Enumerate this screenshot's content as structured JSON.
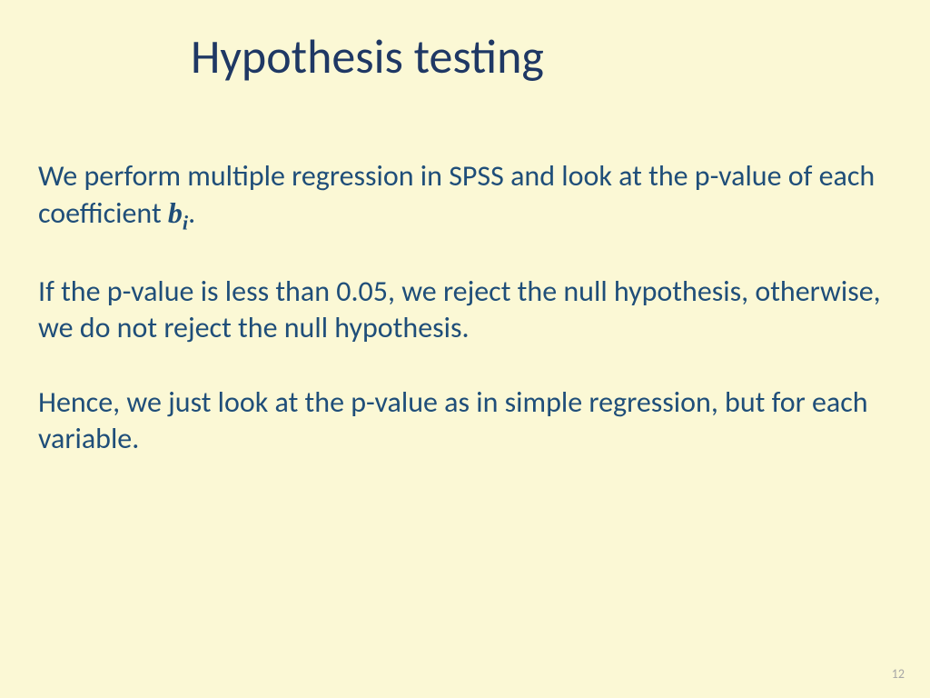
{
  "slide": {
    "title": "Hypothesis testing",
    "background_color": "#fbf8d5",
    "title_color": "#1f3864",
    "text_color": "#1f4e79",
    "title_fontsize": 52,
    "body_fontsize": 32,
    "page_number": "12",
    "paragraphs": {
      "p1_part1": "We perform multiple regression in SPSS and look at the p-value of each coefficient ",
      "p1_math_b": "b",
      "p1_math_i": "i",
      "p1_part2": ".",
      "p2": "If the p-value is less than 0.05, we reject the null hypothesis, otherwise, we do not reject the null hypothesis.",
      "p3": "Hence, we just look at the p-value as in simple regression, but for each variable."
    }
  }
}
